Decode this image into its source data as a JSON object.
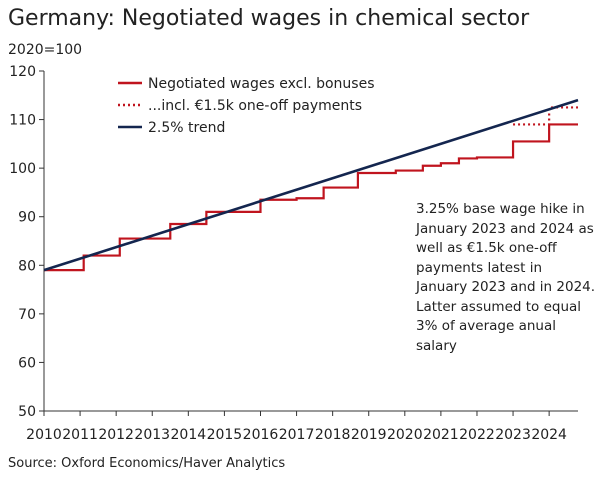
{
  "chart_data": {
    "type": "line",
    "title": "Germany: Negotiated wages in chemical sector",
    "ylabel": "2020=100",
    "source": "Source: Oxford Economics/Haver Analytics",
    "xlim": [
      2010,
      2024.8
    ],
    "ylim": [
      50,
      120
    ],
    "yticks": [
      50,
      60,
      70,
      80,
      90,
      100,
      110,
      120
    ],
    "xticks": [
      2010,
      2011,
      2012,
      2013,
      2014,
      2015,
      2016,
      2017,
      2018,
      2019,
      2020,
      2021,
      2022,
      2023,
      2024
    ],
    "legend_position": "top-left",
    "annotation": "3.25% base wage hike in January 2023 and 2024 as well as €1.5k one-off payments latest in January 2023 and in 2024. Latter assumed to equal 3% of average anual salary",
    "series": [
      {
        "name": "Negotiated wages excl. bonuses",
        "color": "#c0141e",
        "style": "solid",
        "step": true,
        "x": [
          2010.0,
          2011.0,
          2011.1,
          2012.0,
          2012.1,
          2013.0,
          2013.5,
          2014.0,
          2014.5,
          2015.0,
          2015.75,
          2016.0,
          2016.75,
          2017.0,
          2017.75,
          2018.0,
          2018.7,
          2019.0,
          2019.75,
          2020.0,
          2020.5,
          2021.0,
          2021.5,
          2022.0,
          2022.5,
          2023.0,
          2023.6,
          2024.0,
          2024.8
        ],
        "y": [
          79.0,
          79.0,
          82.0,
          82.0,
          85.5,
          85.5,
          88.5,
          88.5,
          91.0,
          91.0,
          91.0,
          93.5,
          93.5,
          93.8,
          96.0,
          96.0,
          99.0,
          99.0,
          99.5,
          99.5,
          100.5,
          101.0,
          102.0,
          102.2,
          102.2,
          105.5,
          105.5,
          109.0,
          109.0
        ]
      },
      {
        "name": "...incl. €1.5k one-off payments",
        "color": "#c0141e",
        "style": "dotted",
        "step": true,
        "x": [
          2023.0,
          2023.6,
          2024.0,
          2024.8
        ],
        "y": [
          109.0,
          109.0,
          112.5,
          112.5
        ]
      },
      {
        "name": "2.5% trend",
        "color": "#14264f",
        "style": "solid",
        "step": false,
        "x": [
          2010.0,
          2024.8
        ],
        "y": [
          79.0,
          114.0
        ]
      }
    ]
  }
}
